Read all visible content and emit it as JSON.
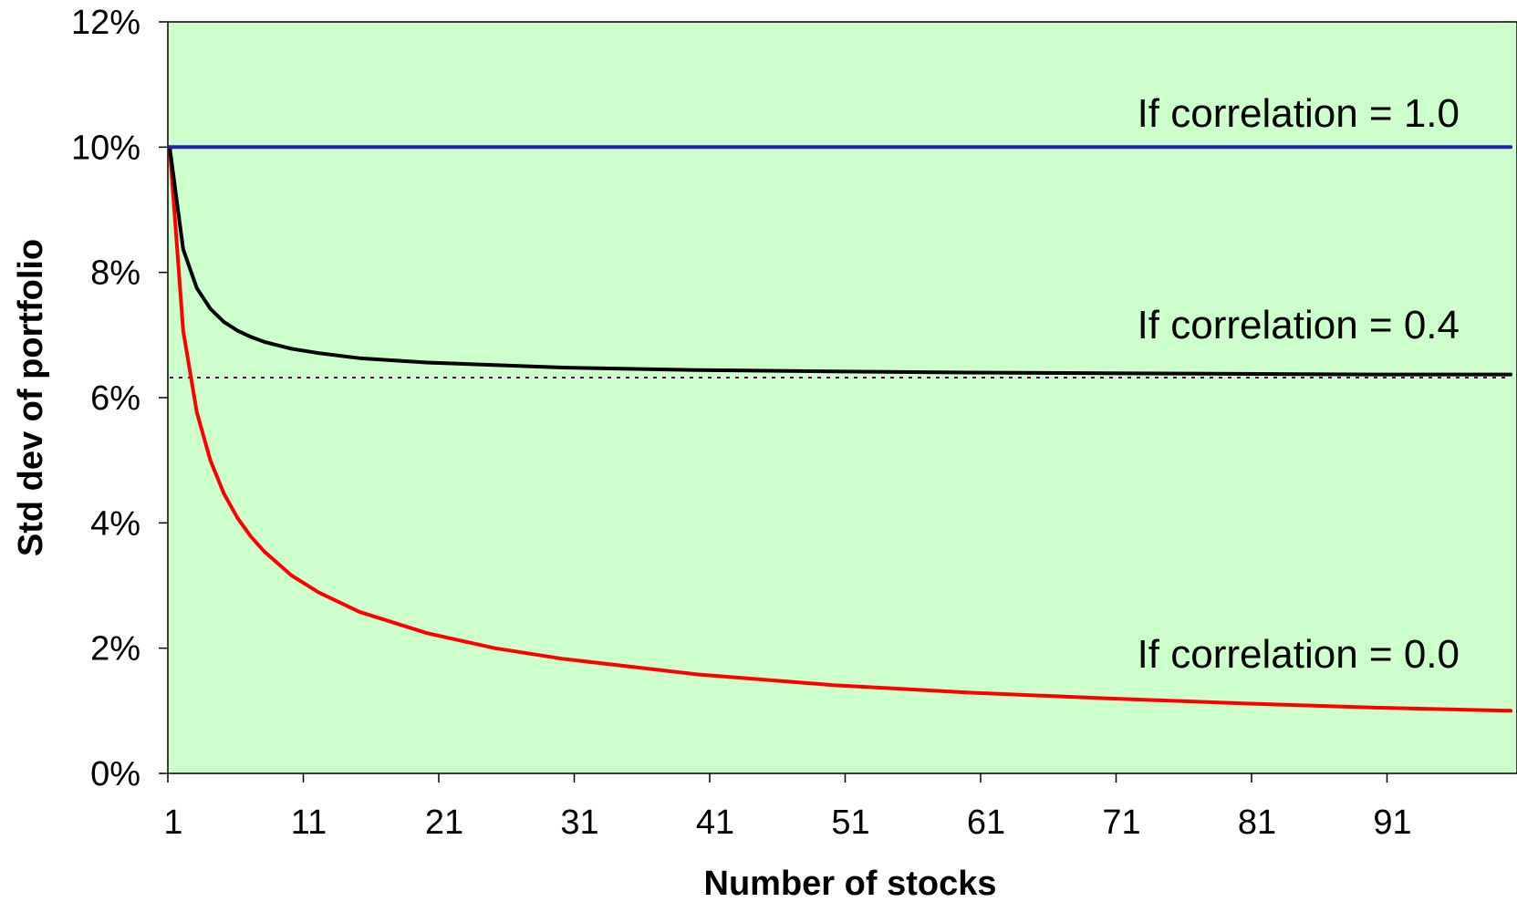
{
  "chart_data": {
    "type": "line",
    "title": "",
    "xlabel": "Number of stocks",
    "ylabel": "Std dev of portfolio",
    "xlim": [
      1,
      100
    ],
    "ylim": [
      0,
      12
    ],
    "x_ticks": [
      "1",
      "11",
      "21",
      "31",
      "41",
      "51",
      "61",
      "71",
      "81",
      "91"
    ],
    "y_ticks": [
      "0%",
      "2%",
      "4%",
      "6%",
      "8%",
      "10%",
      "12%"
    ],
    "grid": false,
    "legend": "none",
    "plot_background": "#ccffcc",
    "series": [
      {
        "label": "If correlation = 1.0",
        "color": "#2222aa",
        "x": [
          1,
          100
        ],
        "y": [
          10,
          10
        ]
      },
      {
        "label": "If correlation = 0.4",
        "color": "#000000",
        "x": [
          1,
          2,
          3,
          4,
          5,
          6,
          7,
          8,
          10,
          12,
          15,
          20,
          30,
          40,
          50,
          60,
          70,
          80,
          90,
          100
        ],
        "y": [
          10.0,
          8.37,
          7.75,
          7.42,
          7.21,
          7.07,
          6.97,
          6.89,
          6.78,
          6.71,
          6.63,
          6.56,
          6.48,
          6.44,
          6.42,
          6.4,
          6.39,
          6.38,
          6.37,
          6.37
        ]
      },
      {
        "label": "If correlation = 0.0",
        "color": "#ff0000",
        "x": [
          1,
          2,
          3,
          4,
          5,
          6,
          7,
          8,
          10,
          12,
          15,
          20,
          25,
          30,
          40,
          50,
          60,
          70,
          80,
          90,
          100
        ],
        "y": [
          10.0,
          7.07,
          5.77,
          5.0,
          4.47,
          4.08,
          3.78,
          3.54,
          3.16,
          2.89,
          2.58,
          2.24,
          2.0,
          1.83,
          1.58,
          1.41,
          1.29,
          1.2,
          1.12,
          1.05,
          1.0
        ]
      },
      {
        "label": "",
        "style": "dotted",
        "color": "#660066",
        "x": [
          1,
          100
        ],
        "y": [
          6.32,
          6.32
        ]
      }
    ]
  }
}
